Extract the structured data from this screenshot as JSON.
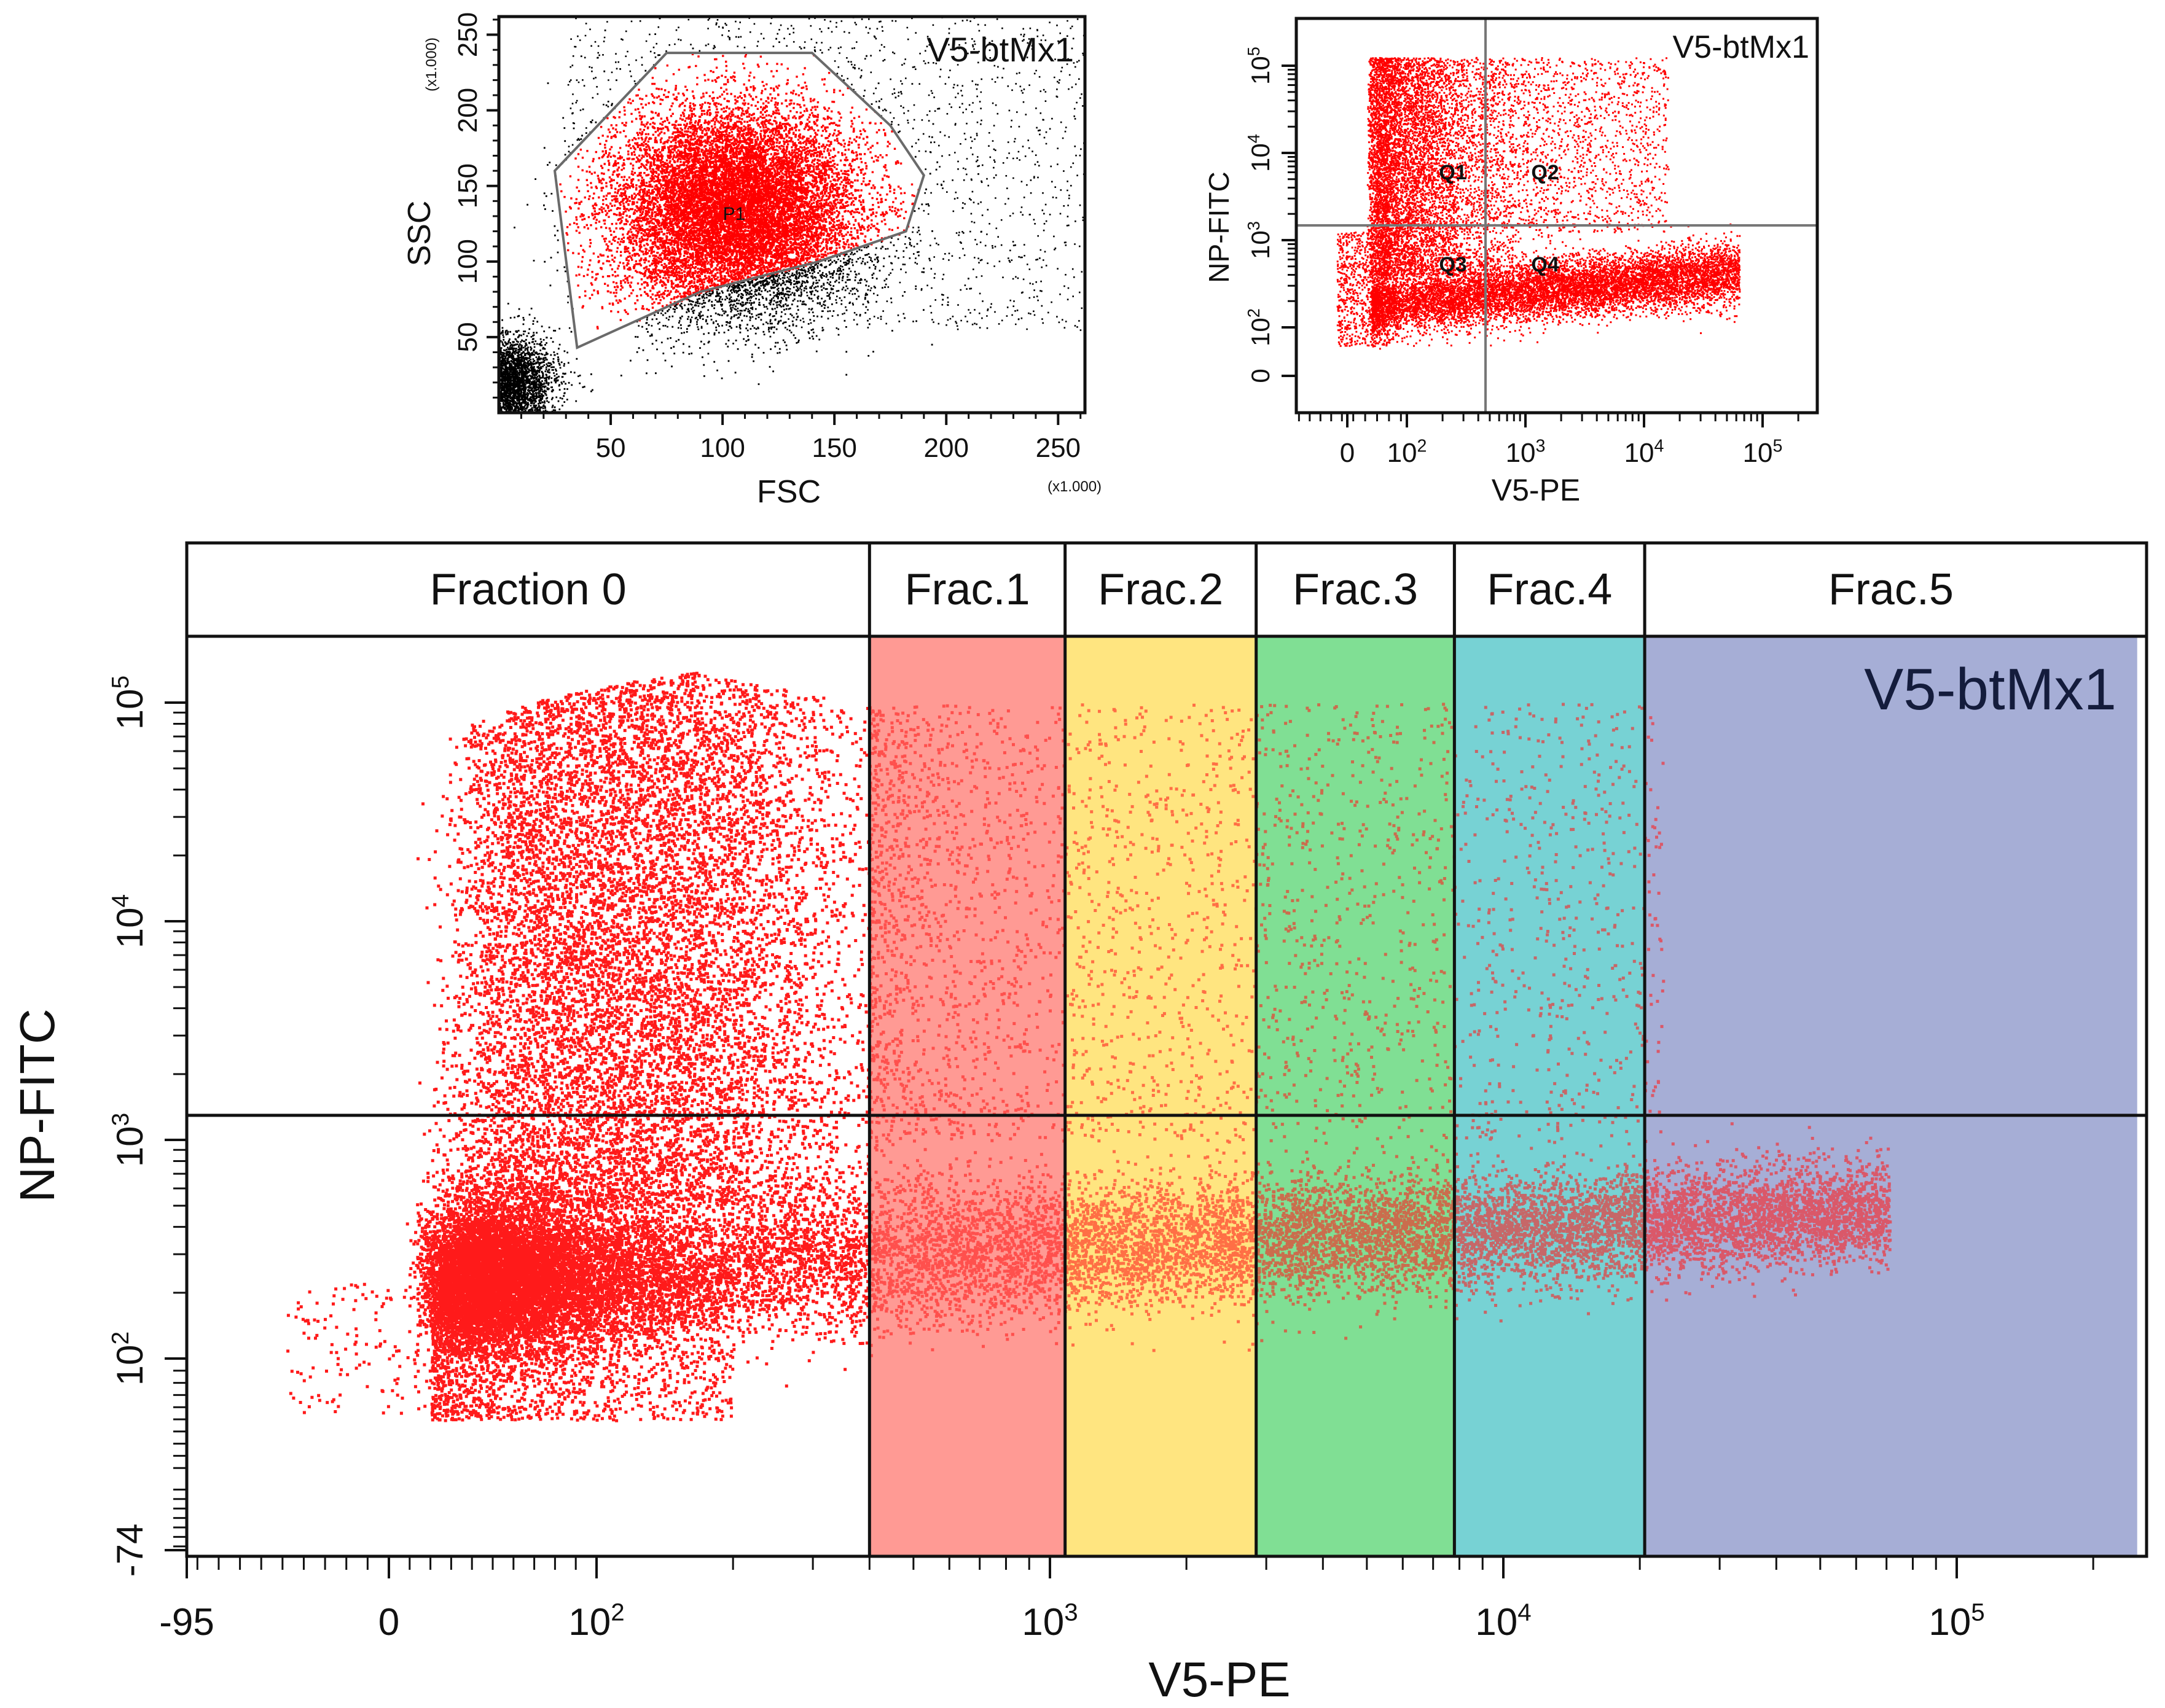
{
  "chart_data": [
    {
      "type": "scatter",
      "panel": "top-left",
      "title": "V5-btMx1",
      "xlabel": "FSC",
      "ylabel": "SSC",
      "x_unit_label": "(x1.000)",
      "y_unit_label": "(x1.000)",
      "xlim": [
        0,
        262
      ],
      "ylim": [
        0,
        262
      ],
      "x_ticks": [
        "50",
        "100",
        "150",
        "200",
        "250"
      ],
      "y_ticks": [
        "50",
        "100",
        "150",
        "200",
        "250"
      ],
      "gate": {
        "name": "P1",
        "polygon": [
          [
            25,
            160
          ],
          [
            75,
            238
          ],
          [
            140,
            238
          ],
          [
            175,
            190
          ],
          [
            190,
            157
          ],
          [
            182,
            120
          ],
          [
            143,
            100
          ],
          [
            90,
            80
          ],
          [
            35,
            43
          ]
        ]
      },
      "colors": {
        "gated": "#ff0000",
        "ungated": "#000000"
      }
    },
    {
      "type": "scatter",
      "panel": "top-right",
      "title": "V5-btMx1",
      "xlabel": "V5-PE",
      "ylabel": "NP-FITC",
      "x_ticks": [
        "0",
        "10^2",
        "10^3",
        "10^4",
        "10^5"
      ],
      "y_ticks": [
        "0",
        "10^2",
        "10^3",
        "10^4",
        "10^5"
      ],
      "quadrants": [
        "Q1",
        "Q2",
        "Q3",
        "Q4"
      ],
      "quadrant_divider": {
        "x": 400,
        "y": 1300
      },
      "colors": {
        "points": "#ff0000",
        "lines": "#777777"
      }
    },
    {
      "type": "scatter",
      "panel": "bottom",
      "title": "V5-btMx1",
      "xlabel": "V5-PE",
      "ylabel": "NP-FITC",
      "x_ticks": [
        "-95",
        "0",
        "10^2",
        "10^3",
        "10^4",
        "10^5"
      ],
      "y_ticks": [
        "-74",
        "10^2",
        "10^3",
        "10^4",
        "10^5"
      ],
      "threshold_y": 1300,
      "fractions": [
        {
          "label": "Fraction 0",
          "from": -95,
          "to": 400,
          "color": "#ffffff"
        },
        {
          "label": "Frac.1",
          "from": 400,
          "to": 1080,
          "color": "#ff9a94"
        },
        {
          "label": "Frac.2",
          "from": 1080,
          "to": 2850,
          "color": "#ffe580"
        },
        {
          "label": "Frac.3",
          "from": 2850,
          "to": 7800,
          "color": "#80df94"
        },
        {
          "label": "Frac.4",
          "from": 7800,
          "to": 20500,
          "color": "#78d2d4"
        },
        {
          "label": "Frac.5",
          "from": 20500,
          "to": 250000,
          "color": "#a6aed6"
        }
      ],
      "colors": {
        "points": "#ff0000",
        "title": "#141c3c"
      }
    }
  ]
}
